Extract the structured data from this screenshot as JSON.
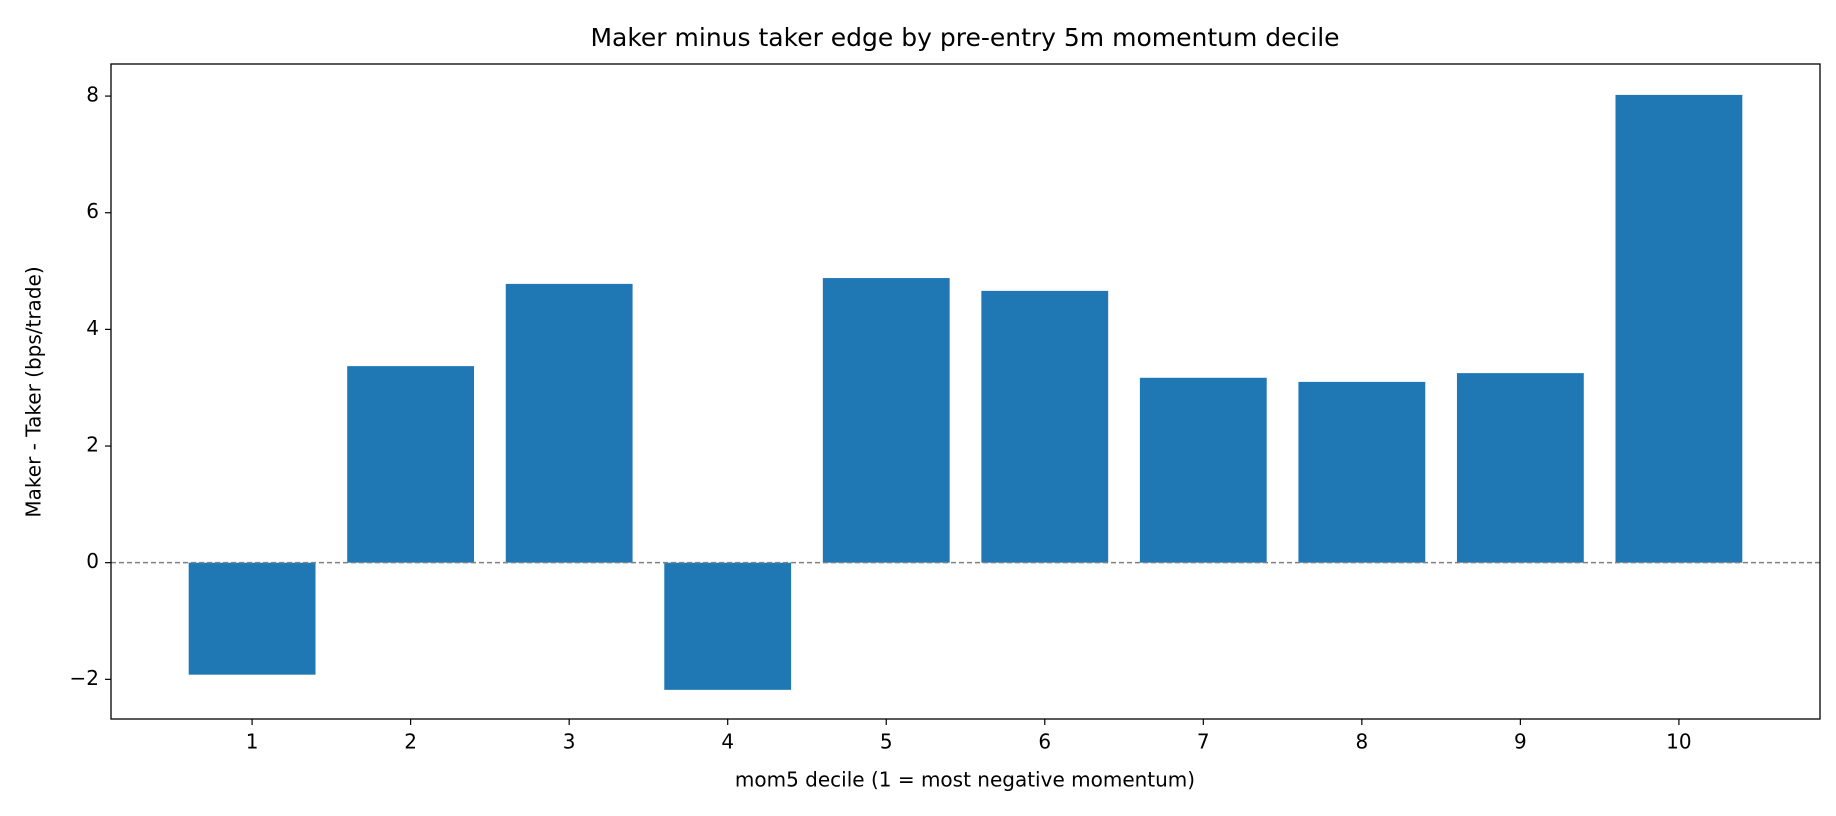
{
  "chart_data": {
    "type": "bar",
    "title": "Maker minus taker edge by pre-entry 5m momentum decile",
    "x_label": "mom5 decile (1 = most negative momentum)",
    "y_label": "Maker - Taker (bps/trade)",
    "x": [
      1,
      2,
      3,
      4,
      5,
      6,
      7,
      8,
      9,
      10
    ],
    "values": [
      -1.92,
      3.37,
      4.78,
      -2.18,
      4.88,
      4.66,
      3.17,
      3.1,
      3.25,
      8.02
    ],
    "color": "#1f77b4",
    "bar_width": 0.8,
    "xlim": [
      0.11,
      10.89
    ],
    "xticks": [
      1,
      2,
      3,
      4,
      5,
      6,
      7,
      8,
      9,
      10
    ],
    "ylim": [
      -2.68,
      8.55
    ],
    "yticks": [
      {
        "value": -2,
        "label": "−2"
      },
      0,
      2,
      4,
      6,
      8
    ],
    "reference_line": {
      "value": 0,
      "color": "#808080",
      "dashed": true
    },
    "grid": false
  }
}
